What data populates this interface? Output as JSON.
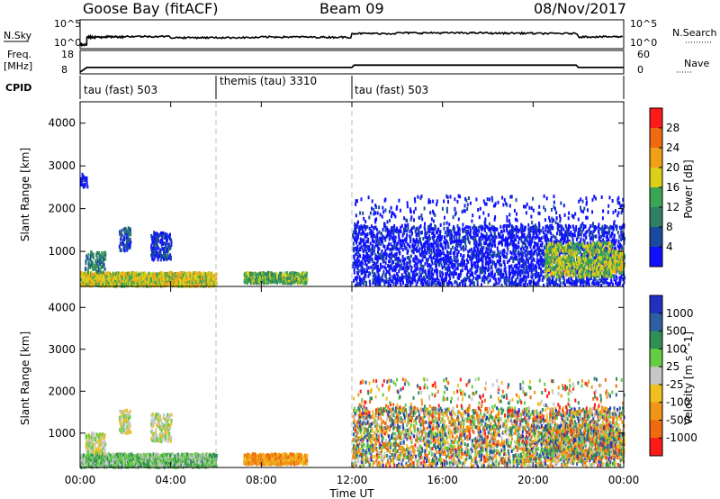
{
  "header": {
    "radar": "Goose Bay (fitACF)",
    "beam": "Beam 09",
    "date": "08/Nov/2017"
  },
  "summary": {
    "nsky_label": "N.Sky",
    "nsearch_label": "N.Search",
    "freq_label": "Freq.",
    "freq_unit": "[MHz]",
    "nave_label": "Nave",
    "cpid_label": "CPID",
    "noise_ticks": [
      "10^5",
      "10^0"
    ],
    "freq_ticks": [
      "18",
      "8"
    ],
    "nave_ticks": [
      "60",
      "0"
    ]
  },
  "cpid_segments": [
    {
      "label": "tau (fast) 503",
      "start": 0,
      "end": 6
    },
    {
      "label": "themis (tau) 3310",
      "start": 6,
      "end": 12
    },
    {
      "label": "tau (fast) 503",
      "start": 12,
      "end": 24
    }
  ],
  "axes": {
    "ylabel": "Slant Range [km]",
    "xlabel": "Time UT",
    "xticks": [
      "00:00",
      "04:00",
      "08:00",
      "12:00",
      "16:00",
      "20:00",
      "00:00"
    ],
    "yticks": [
      "1000",
      "2000",
      "3000",
      "4000"
    ]
  },
  "power_colorbar": {
    "label": "Power [dB]",
    "ticks": [
      "4",
      "8",
      "12",
      "16",
      "20",
      "24",
      "28"
    ],
    "colors": [
      "#1010ff",
      "#1a4aa0",
      "#2f7f62",
      "#3aa555",
      "#dccf18",
      "#f2a018",
      "#ef6a10",
      "#ff1a1a"
    ]
  },
  "velocity_colorbar": {
    "label": "Velocity [m s^-1]",
    "ticks": [
      "1000",
      "500",
      "100",
      "25",
      "-25",
      "-100",
      "-500",
      "-1000"
    ],
    "colors": [
      "#2030c0",
      "#2f5fa0",
      "#2f8f55",
      "#66cc44",
      "#c6c6c6",
      "#efc020",
      "#f09518",
      "#ef6a10",
      "#ff1a1a"
    ]
  },
  "chart_data": [
    {
      "type": "line",
      "title": "N.Sky / N.Search",
      "x_range": [
        0,
        24
      ],
      "y_scale": "log",
      "ylim": [
        1,
        100000
      ],
      "series": [
        {
          "name": "N.Sky",
          "x": [
            0,
            0.3,
            1,
            2,
            4,
            6,
            8,
            10,
            12,
            14,
            16,
            18,
            20,
            22,
            24
          ],
          "values": [
            1,
            50,
            60,
            70,
            40,
            40,
            55,
            50,
            300,
            400,
            400,
            350,
            300,
            60,
            60
          ]
        }
      ]
    },
    {
      "type": "line",
      "title": "Freq. / Nave",
      "x_range": [
        0,
        24
      ],
      "ylim": [
        8,
        18
      ],
      "series": [
        {
          "name": "Freq.",
          "x": [
            0,
            0.3,
            12,
            12.1,
            21.9,
            22,
            24
          ],
          "values": [
            8,
            10.3,
            10.3,
            11.5,
            11.5,
            10.3,
            10.3
          ]
        }
      ]
    },
    {
      "type": "heatmap",
      "title": "Power [dB]",
      "xlabel": "Time UT",
      "ylabel": "Slant Range [km]",
      "x_range": [
        0,
        24
      ],
      "ylim": [
        180,
        4500
      ],
      "regions": [
        {
          "t": [
            0,
            6
          ],
          "r": [
            180,
            500
          ],
          "density": 0.9,
          "level": 20
        },
        {
          "t": [
            0.2,
            1.1
          ],
          "r": [
            500,
            1000
          ],
          "density": 0.4,
          "level": 12
        },
        {
          "t": [
            1.7,
            2.2
          ],
          "r": [
            1000,
            1550
          ],
          "density": 0.6,
          "level": 8
        },
        {
          "t": [
            3.1,
            4.0
          ],
          "r": [
            800,
            1450
          ],
          "density": 0.5,
          "level": 6
        },
        {
          "t": [
            0,
            0.3
          ],
          "r": [
            2500,
            2800
          ],
          "density": 0.3,
          "level": 4
        },
        {
          "t": [
            7.2,
            10.0
          ],
          "r": [
            250,
            500
          ],
          "density": 0.8,
          "level": 16
        },
        {
          "t": [
            12,
            24
          ],
          "r": [
            200,
            1600
          ],
          "density": 0.32,
          "level": 4
        },
        {
          "t": [
            12,
            24
          ],
          "r": [
            1600,
            2300
          ],
          "density": 0.06,
          "level": 4
        },
        {
          "t": [
            20.5,
            23.5
          ],
          "r": [
            400,
            1200
          ],
          "density": 0.5,
          "level": 18
        },
        {
          "t": [
            23.5,
            24
          ],
          "r": [
            500,
            1000
          ],
          "density": 0.6,
          "level": 20
        }
      ]
    },
    {
      "type": "heatmap",
      "title": "Velocity [m s^-1]",
      "xlabel": "Time UT",
      "ylabel": "Slant Range [km]",
      "x_range": [
        0,
        24
      ],
      "ylim": [
        180,
        4500
      ],
      "regions": [
        {
          "t": [
            0,
            6
          ],
          "r": [
            180,
            500
          ],
          "density": 0.9,
          "level": 3
        },
        {
          "t": [
            0.2,
            1.1
          ],
          "r": [
            500,
            1000
          ],
          "density": 0.4,
          "level": 4
        },
        {
          "t": [
            1.7,
            2.2
          ],
          "r": [
            1000,
            1550
          ],
          "density": 0.6,
          "level": 4
        },
        {
          "t": [
            3.1,
            4.0
          ],
          "r": [
            800,
            1450
          ],
          "density": 0.5,
          "level": 4
        },
        {
          "t": [
            7.2,
            10.0
          ],
          "r": [
            250,
            500
          ],
          "density": 0.8,
          "level": 6
        },
        {
          "t": [
            12,
            24
          ],
          "r": [
            200,
            1600
          ],
          "density": 0.32,
          "level": 4
        },
        {
          "t": [
            12,
            24
          ],
          "r": [
            1600,
            2300
          ],
          "density": 0.06,
          "level": 5
        },
        {
          "t": [
            20.5,
            23.5
          ],
          "r": [
            400,
            1200
          ],
          "density": 0.5,
          "level": 4
        },
        {
          "t": [
            23.5,
            24
          ],
          "r": [
            500,
            1000
          ],
          "density": 0.6,
          "level": 4
        }
      ]
    }
  ]
}
